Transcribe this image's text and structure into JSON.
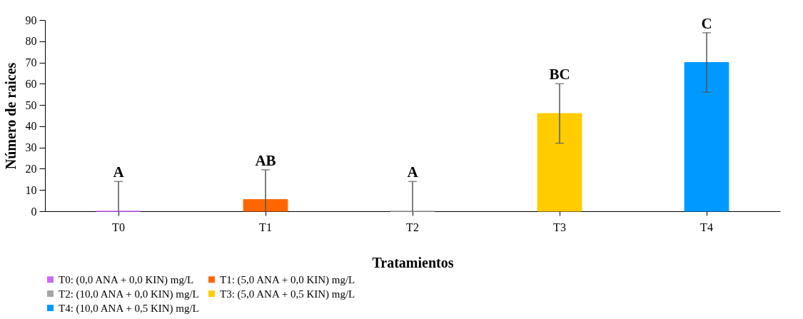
{
  "chart_data": {
    "type": "bar",
    "categories": [
      "T0",
      "T1",
      "T2",
      "T3",
      "T4"
    ],
    "xlabel": "Tratamientos",
    "ylabel": "Número de raices",
    "ylim": [
      0,
      90
    ],
    "yticks": [
      0,
      10,
      20,
      30,
      40,
      50,
      60,
      70,
      80,
      90
    ],
    "grid": false,
    "legend": "bottom",
    "series": [
      {
        "name": "T0: (0,0 ANA + 0,0 KIN) mg/L",
        "color": "#cc66ff",
        "values": [
          0,
          null,
          null,
          null,
          null
        ],
        "errors": [
          [
            0,
            14
          ],
          null,
          null,
          null,
          null
        ]
      },
      {
        "name": "T1: (5,0 ANA + 0,0 KIN) mg/L",
        "color": "#ff6600",
        "values": [
          null,
          5.5,
          null,
          null,
          null
        ],
        "errors": [
          null,
          [
            0,
            19.5
          ],
          null,
          null,
          null
        ]
      },
      {
        "name": "T2: (10,0 ANA + 0,0 KIN) mg/L",
        "color": "#a6a6a6",
        "values": [
          null,
          null,
          0,
          null,
          null
        ],
        "errors": [
          null,
          null,
          [
            0,
            14
          ],
          null,
          null
        ]
      },
      {
        "name": "T3: (5,0 ANA + 0,5 KIN) mg/L",
        "color": "#ffcc00",
        "values": [
          null,
          null,
          null,
          46,
          null
        ],
        "errors": [
          null,
          null,
          null,
          [
            32,
            60
          ],
          null
        ]
      },
      {
        "name": "T4: (10,0 ANA + 0,5 KIN) mg/L",
        "color": "#0099ff",
        "values": [
          null,
          null,
          null,
          null,
          70
        ],
        "errors": [
          null,
          null,
          null,
          null,
          [
            56,
            84
          ]
        ]
      }
    ],
    "annotations": [
      {
        "text": "A",
        "x": "T0",
        "y": 14
      },
      {
        "text": "AB",
        "x": "T1",
        "y": 19.5
      },
      {
        "text": "A",
        "x": "T2",
        "y": 14
      },
      {
        "text": "BC",
        "x": "T3",
        "y": 60
      },
      {
        "text": "C",
        "x": "T4",
        "y": 84
      }
    ]
  }
}
